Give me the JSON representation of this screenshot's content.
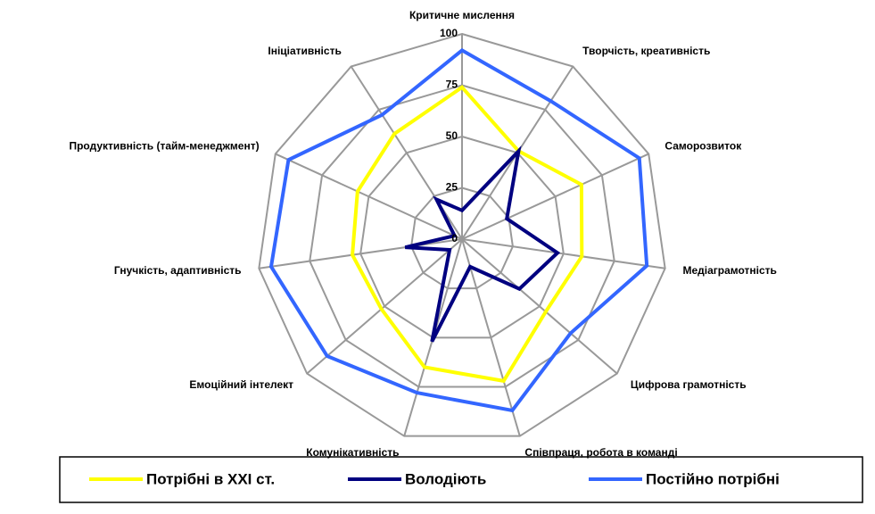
{
  "chart_data": {
    "type": "radar",
    "categories": [
      "Критичне мислення",
      "Творчість, креативність",
      "Саморозвиток",
      "Медіаграмотність",
      "Цифрова грамотність",
      "Співпраця, робота в команді",
      "Комунікативність",
      "Емоційний інтелект",
      "Гнучкість, адаптивність",
      "Продуктивність (тайм-менеджмент)",
      "Ініціативність"
    ],
    "series": [
      {
        "name": "Потрібні в XXI ст.",
        "color": "#ffff00",
        "values": [
          74,
          51,
          64,
          59,
          54,
          72,
          65,
          52,
          54,
          56,
          61
        ]
      },
      {
        "name": "Володіють",
        "color": "#000080",
        "values": [
          14,
          51,
          24,
          47,
          37,
          14,
          52,
          8,
          28,
          4,
          23
        ]
      },
      {
        "name": "Постійно потрібні",
        "color": "#3366ff",
        "values": [
          92,
          80,
          95,
          91,
          70,
          87,
          78,
          87,
          94,
          93,
          72
        ]
      }
    ],
    "ylim": [
      0,
      100
    ],
    "yticks": [
      0,
      25,
      50,
      75,
      100
    ],
    "grid": true,
    "legend": "bottom"
  }
}
